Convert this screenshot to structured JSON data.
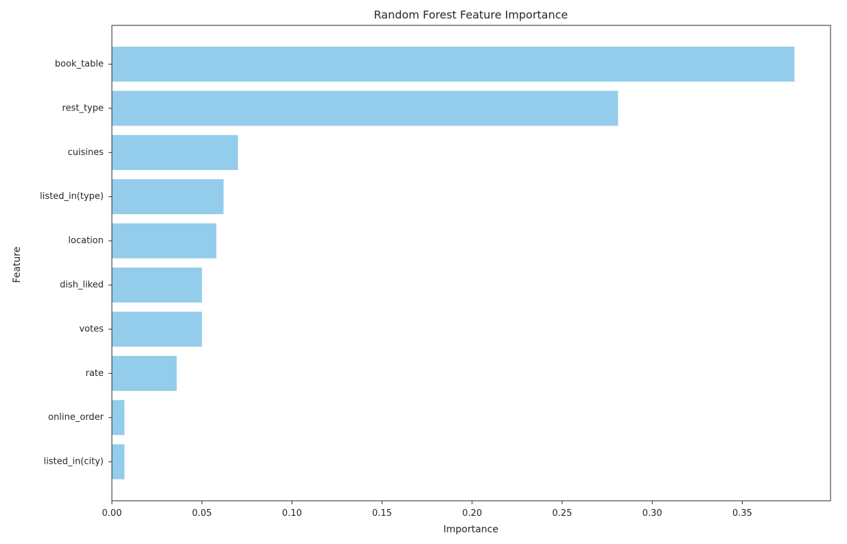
{
  "chart_data": {
    "type": "bar",
    "orientation": "horizontal",
    "title": "Random Forest Feature Importance",
    "xlabel": "Importance",
    "ylabel": "Feature",
    "categories": [
      "book_table",
      "rest_type",
      "cuisines",
      "listed_in(type)",
      "location",
      "dish_liked",
      "votes",
      "rate",
      "online_order",
      "listed_in(city)"
    ],
    "values": [
      0.379,
      0.281,
      0.07,
      0.062,
      0.058,
      0.05,
      0.05,
      0.036,
      0.007,
      0.007
    ],
    "xlim": [
      0,
      0.399
    ],
    "xticks": [
      0.0,
      0.05,
      0.1,
      0.15,
      0.2,
      0.25,
      0.3,
      0.35
    ],
    "xtick_labels": [
      "0.00",
      "0.05",
      "0.10",
      "0.15",
      "0.20",
      "0.25",
      "0.30",
      "0.35"
    ],
    "grid": false,
    "bar_color": "#94cceb"
  }
}
